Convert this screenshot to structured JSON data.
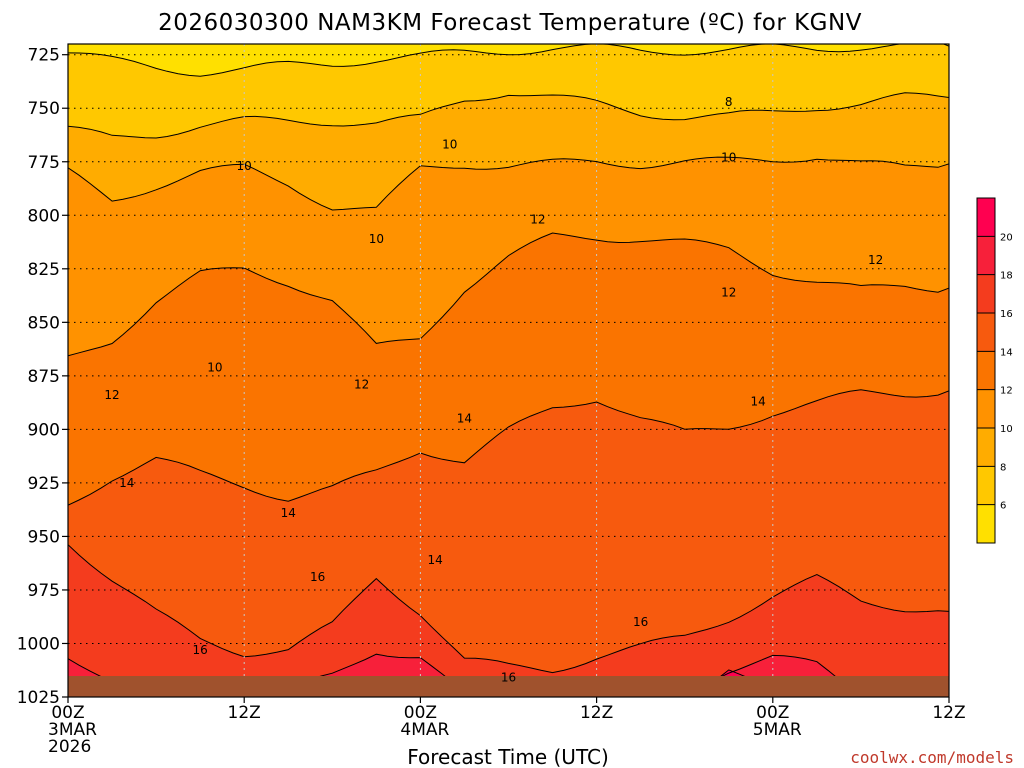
{
  "chart_data": {
    "type": "heatmap",
    "title": "2026030300 NAM3KM Forecast Temperature (ºC) for KGNV",
    "xlabel": "Forecast Time (UTC)",
    "x_ticks": [
      {
        "hours": 0,
        "lines": [
          "00Z",
          "3MAR",
          "2026"
        ]
      },
      {
        "hours": 12,
        "lines": [
          "12Z"
        ]
      },
      {
        "hours": 24,
        "lines": [
          "00Z",
          "4MAR"
        ]
      },
      {
        "hours": 36,
        "lines": [
          "12Z"
        ]
      },
      {
        "hours": 48,
        "lines": [
          "00Z",
          "5MAR"
        ]
      },
      {
        "hours": 60,
        "lines": [
          "12Z"
        ]
      }
    ],
    "x_range_hours": [
      0,
      60
    ],
    "y_ticks": [
      725,
      750,
      775,
      800,
      825,
      850,
      875,
      900,
      925,
      950,
      975,
      1000,
      1025
    ],
    "y_range_hpa": [
      720,
      1025
    ],
    "grid": true,
    "legend": {
      "placement": "right",
      "labels": [
        6,
        8,
        10,
        12,
        14,
        16,
        18,
        20
      ],
      "bins": [
        {
          "from": 4,
          "to": 6,
          "color": "#ffe000"
        },
        {
          "from": 6,
          "to": 8,
          "color": "#ffc800"
        },
        {
          "from": 8,
          "to": 10,
          "color": "#ffac00"
        },
        {
          "from": 10,
          "to": 12,
          "color": "#ff9200"
        },
        {
          "from": 12,
          "to": 14,
          "color": "#fa7400"
        },
        {
          "from": 14,
          "to": 16,
          "color": "#f75a0e"
        },
        {
          "from": 16,
          "to": 18,
          "color": "#f43c1e"
        },
        {
          "from": 18,
          "to": 20,
          "color": "#f7203a"
        },
        {
          "from": 20,
          "to": 22,
          "color": "#ff0050"
        }
      ]
    },
    "contour_labels": [
      {
        "value": "8",
        "hours": 45,
        "hpa": 747
      },
      {
        "value": "10",
        "hours": 12,
        "hpa": 777
      },
      {
        "value": "10",
        "hours": 26,
        "hpa": 767
      },
      {
        "value": "10",
        "hours": 45,
        "hpa": 773
      },
      {
        "value": "10",
        "hours": 21,
        "hpa": 811
      },
      {
        "value": "10",
        "hours": 10,
        "hpa": 871
      },
      {
        "value": "12",
        "hours": 32,
        "hpa": 802
      },
      {
        "value": "12",
        "hours": 45,
        "hpa": 836
      },
      {
        "value": "12",
        "hours": 55,
        "hpa": 821
      },
      {
        "value": "12",
        "hours": 20,
        "hpa": 879
      },
      {
        "value": "12",
        "hours": 3,
        "hpa": 884
      },
      {
        "value": "14",
        "hours": 27,
        "hpa": 895
      },
      {
        "value": "14",
        "hours": 47,
        "hpa": 887
      },
      {
        "value": "14",
        "hours": 4,
        "hpa": 925
      },
      {
        "value": "14",
        "hours": 15,
        "hpa": 939
      },
      {
        "value": "14",
        "hours": 25,
        "hpa": 961
      },
      {
        "value": "16",
        "hours": 17,
        "hpa": 969
      },
      {
        "value": "16",
        "hours": 39,
        "hpa": 990
      },
      {
        "value": "16",
        "hours": 9,
        "hpa": 1003
      },
      {
        "value": "16",
        "hours": 30,
        "hpa": 1016
      }
    ],
    "ground_color": "#a0522d"
  },
  "credit": "coolwx.com/models"
}
